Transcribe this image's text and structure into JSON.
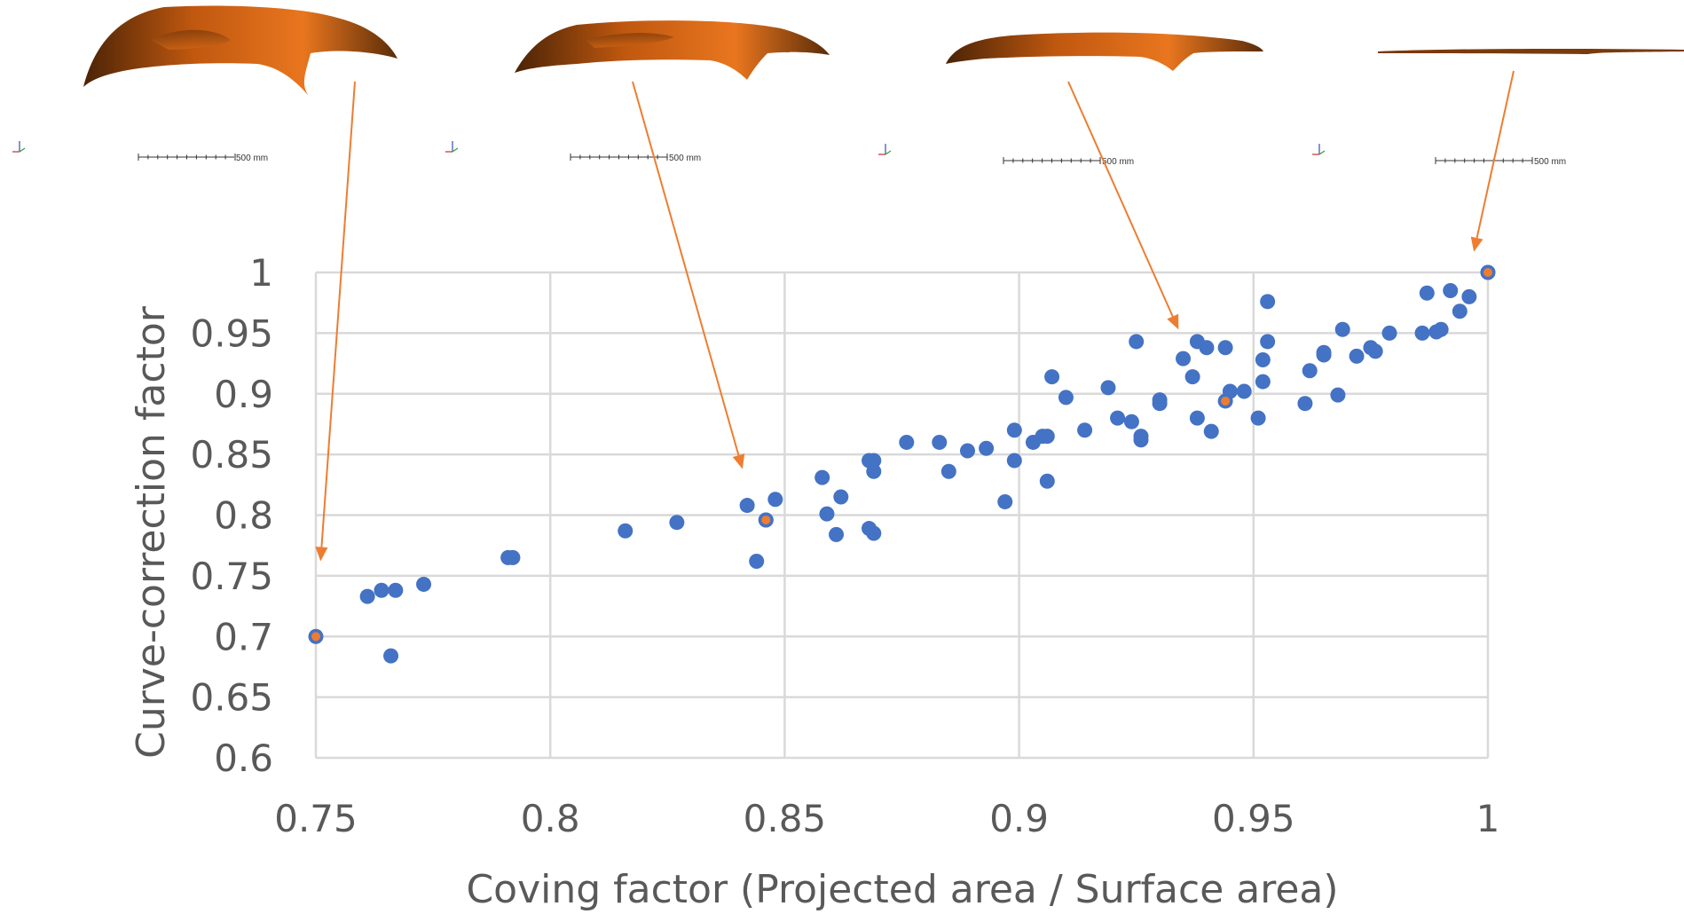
{
  "chart_data": {
    "type": "scatter",
    "xlabel": "Coving factor (Projected area / Surface area)",
    "ylabel": "Curve-correction factor",
    "xlim": [
      0.75,
      1.0
    ],
    "ylim": [
      0.6,
      1.0
    ],
    "x_ticks": [
      "0.75",
      "0.8",
      "0.85",
      "0.9",
      "0.95",
      "1"
    ],
    "y_ticks": [
      "1",
      "0.95",
      "0.9",
      "0.85",
      "0.8",
      "0.75",
      "0.7",
      "0.65",
      "0.6"
    ],
    "grid": true,
    "series": [
      {
        "color": "#4472C4",
        "points": [
          [
            0.761,
            0.733
          ],
          [
            0.764,
            0.738
          ],
          [
            0.767,
            0.738
          ],
          [
            0.766,
            0.684
          ],
          [
            0.773,
            0.743
          ],
          [
            0.791,
            0.765
          ],
          [
            0.792,
            0.765
          ],
          [
            0.816,
            0.787
          ],
          [
            0.827,
            0.794
          ],
          [
            0.842,
            0.808
          ],
          [
            0.844,
            0.762
          ],
          [
            0.846,
            0.796
          ],
          [
            0.848,
            0.813
          ],
          [
            0.858,
            0.831
          ],
          [
            0.859,
            0.801
          ],
          [
            0.861,
            0.784
          ],
          [
            0.862,
            0.815
          ],
          [
            0.868,
            0.845
          ],
          [
            0.869,
            0.845
          ],
          [
            0.869,
            0.836
          ],
          [
            0.868,
            0.789
          ],
          [
            0.869,
            0.785
          ],
          [
            0.876,
            0.86
          ],
          [
            0.883,
            0.86
          ],
          [
            0.885,
            0.836
          ],
          [
            0.889,
            0.853
          ],
          [
            0.893,
            0.855
          ],
          [
            0.897,
            0.811
          ],
          [
            0.899,
            0.87
          ],
          [
            0.899,
            0.845
          ],
          [
            0.903,
            0.86
          ],
          [
            0.905,
            0.865
          ],
          [
            0.906,
            0.865
          ],
          [
            0.906,
            0.828
          ],
          [
            0.907,
            0.914
          ],
          [
            0.91,
            0.897
          ],
          [
            0.914,
            0.87
          ],
          [
            0.919,
            0.905
          ],
          [
            0.921,
            0.88
          ],
          [
            0.924,
            0.877
          ],
          [
            0.925,
            0.943
          ],
          [
            0.926,
            0.865
          ],
          [
            0.926,
            0.862
          ],
          [
            0.93,
            0.895
          ],
          [
            0.93,
            0.892
          ],
          [
            0.935,
            0.929
          ],
          [
            0.937,
            0.914
          ],
          [
            0.938,
            0.88
          ],
          [
            0.938,
            0.943
          ],
          [
            0.94,
            0.938
          ],
          [
            0.941,
            0.869
          ],
          [
            0.944,
            0.938
          ],
          [
            0.945,
            0.902
          ],
          [
            0.948,
            0.902
          ],
          [
            0.951,
            0.88
          ],
          [
            0.952,
            0.91
          ],
          [
            0.952,
            0.928
          ],
          [
            0.953,
            0.943
          ],
          [
            0.953,
            0.976
          ],
          [
            0.961,
            0.892
          ],
          [
            0.962,
            0.919
          ],
          [
            0.965,
            0.932
          ],
          [
            0.965,
            0.934
          ],
          [
            0.968,
            0.899
          ],
          [
            0.969,
            0.953
          ],
          [
            0.972,
            0.931
          ],
          [
            0.975,
            0.938
          ],
          [
            0.976,
            0.935
          ],
          [
            0.979,
            0.95
          ],
          [
            0.986,
            0.95
          ],
          [
            0.987,
            0.983
          ],
          [
            0.989,
            0.951
          ],
          [
            0.99,
            0.953
          ],
          [
            0.992,
            0.985
          ],
          [
            0.994,
            0.968
          ],
          [
            0.996,
            0.98
          ],
          [
            1.0,
            1.0
          ]
        ]
      },
      {
        "color": "#ED7D31",
        "points": [
          [
            0.75,
            0.7
          ],
          [
            0.846,
            0.796
          ],
          [
            0.944,
            0.894
          ],
          [
            1.0,
            1.0
          ]
        ]
      }
    ],
    "arrows": [
      {
        "from_panel": 0,
        "to_point": [
          0.751,
          0.762
        ]
      },
      {
        "from_panel": 1,
        "to_point": [
          0.841,
          0.838
        ]
      },
      {
        "from_panel": 2,
        "to_point": [
          0.934,
          0.953
        ]
      },
      {
        "from_panel": 3,
        "to_point": [
          0.997,
          1.017
        ]
      }
    ]
  },
  "panels": [
    {
      "scale_label": "500 mm"
    },
    {
      "scale_label": "500 mm"
    },
    {
      "scale_label": "500 mm"
    },
    {
      "scale_label": "500 mm"
    }
  ],
  "colors": {
    "point": "#4472C4",
    "highlight": "#ED7D31",
    "grid": "#D9D9D9",
    "text": "#595959",
    "shape_light": "#ED7D31",
    "shape_dark": "#5A2C08"
  }
}
